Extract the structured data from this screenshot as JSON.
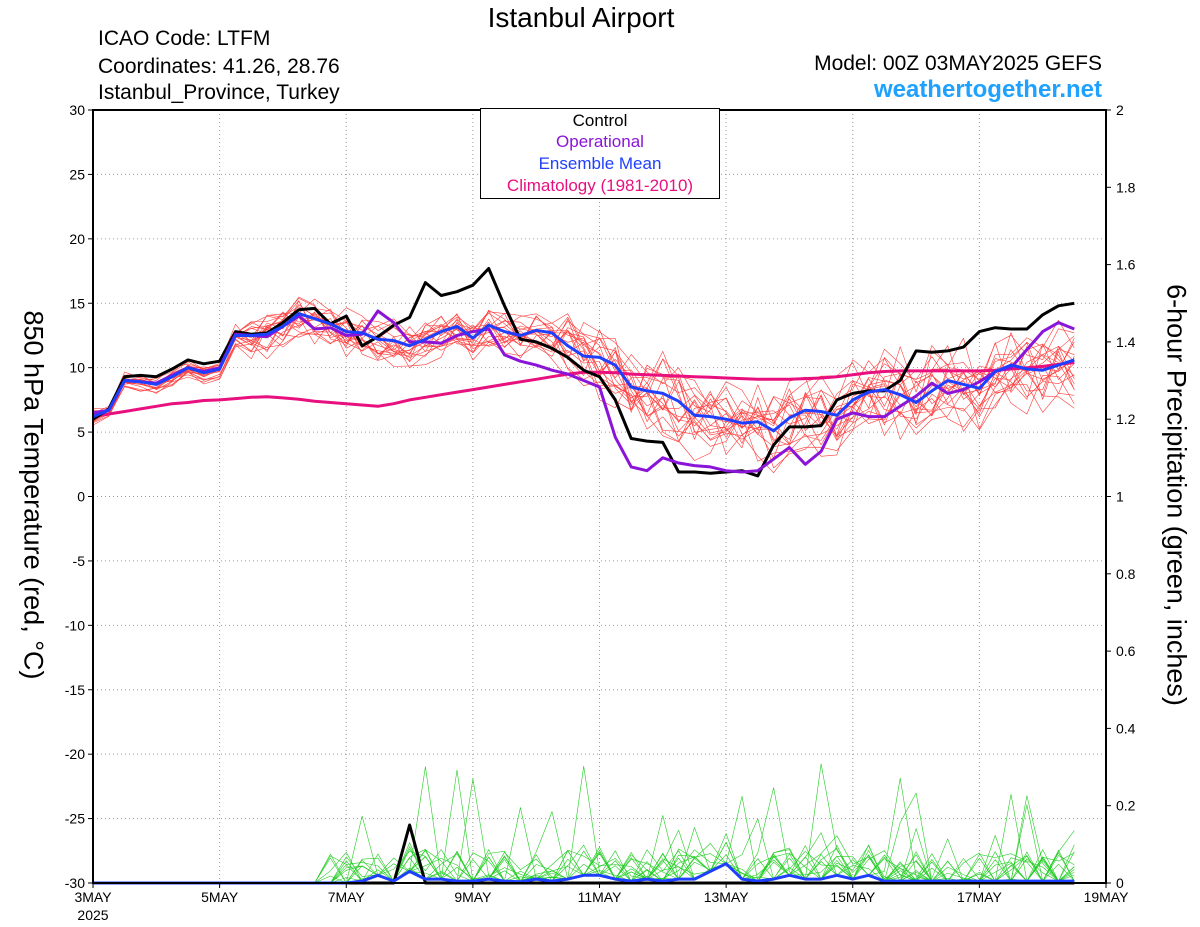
{
  "header": {
    "title": "Istanbul Airport",
    "icao": "ICAO Code: LTFM",
    "coordinates": "Coordinates: 41.26, 28.76",
    "location": "Istanbul_Province, Turkey",
    "model": "Model: 00Z 03MAY2025 GEFS",
    "site": "weathertogether.net"
  },
  "chart_data": {
    "type": "line",
    "x_unit": "6-hour steps from 00Z 03MAY2025",
    "xlim": [
      0,
      64
    ],
    "x_ticks": [
      {
        "x": 0,
        "label": "3MAY",
        "sub": "2025"
      },
      {
        "x": 8,
        "label": "5MAY"
      },
      {
        "x": 16,
        "label": "7MAY"
      },
      {
        "x": 24,
        "label": "9MAY"
      },
      {
        "x": 32,
        "label": "11MAY"
      },
      {
        "x": 40,
        "label": "13MAY"
      },
      {
        "x": 48,
        "label": "15MAY"
      },
      {
        "x": 56,
        "label": "17MAY"
      },
      {
        "x": 64,
        "label": "19MAY"
      }
    ],
    "y_left": {
      "label": "850 hPa Temperature (red, °C)",
      "lim": [
        -30,
        30
      ],
      "ticks": [
        "30",
        "25",
        "20",
        "15",
        "10",
        "5",
        "0",
        "-5",
        "-10",
        "-15",
        "-20",
        "-25",
        "-30"
      ]
    },
    "y_right": {
      "label": "6-hour Precipitation (green, inches)",
      "lim": [
        0,
        2
      ],
      "ticks": [
        "2",
        "1.8",
        "1.6",
        "1.4",
        "1.2",
        "1",
        "0.8",
        "0.6",
        "0.4",
        "0.2",
        "0"
      ]
    },
    "grid": "dotted",
    "legend": [
      "Control",
      "Operational",
      "Ensemble Mean",
      "Climatology (1981-2010)"
    ],
    "legend_colors": [
      "#000000",
      "#8a14d8",
      "#1f3fff",
      "#e8107f"
    ],
    "colors": {
      "member_temp": "#ff3a3a",
      "member_precip": "#22cc22"
    },
    "series": {
      "control_temp": [
        6.0,
        6.8,
        9.3,
        9.4,
        9.3,
        9.9,
        10.6,
        10.3,
        10.5,
        12.8,
        12.6,
        12.7,
        13.5,
        14.5,
        14.6,
        13.4,
        14.0,
        11.7,
        12.4,
        13.3,
        13.9,
        16.6,
        15.6,
        15.9,
        16.4,
        17.7,
        14.8,
        12.2,
        12.0,
        11.5,
        10.8,
        9.8,
        9.3,
        7.5,
        4.5,
        4.3,
        4.2,
        1.9,
        1.9,
        1.8,
        1.9,
        2.0,
        1.6,
        4.0,
        5.4,
        5.4,
        5.5,
        7.5,
        8.0,
        8.2,
        8.2,
        9.0,
        11.3,
        11.2,
        11.3,
        11.6,
        12.8,
        13.1,
        13.0,
        13.0,
        14.1,
        14.8,
        15.0
      ],
      "operational_temp": [
        6.5,
        6.7,
        9.0,
        8.9,
        8.8,
        9.4,
        10.0,
        9.7,
        10.0,
        12.6,
        12.5,
        12.4,
        13.2,
        14.0,
        13.0,
        13.1,
        12.5,
        12.6,
        14.4,
        13.5,
        12.0,
        12.0,
        11.9,
        12.5,
        12.8,
        13.0,
        11.0,
        10.5,
        10.2,
        9.8,
        9.5,
        9.0,
        8.5,
        4.6,
        2.3,
        2.0,
        3.0,
        2.6,
        2.4,
        2.3,
        2.0,
        1.9,
        2.0,
        2.9,
        3.8,
        2.5,
        3.5,
        6.0,
        6.5,
        6.2,
        6.2,
        7.0,
        7.8,
        8.8,
        8.0,
        8.3,
        8.9,
        9.7,
        10.0,
        11.4,
        12.8,
        13.5,
        13.0
      ],
      "mean_temp": [
        6.2,
        6.7,
        9.0,
        8.9,
        8.7,
        9.3,
        10.0,
        9.6,
        9.9,
        12.5,
        12.5,
        12.6,
        13.2,
        14.2,
        13.8,
        13.4,
        12.8,
        12.7,
        12.2,
        12.1,
        11.7,
        12.2,
        12.8,
        13.2,
        12.3,
        13.3,
        12.8,
        12.5,
        12.9,
        12.7,
        11.7,
        10.9,
        10.8,
        10.2,
        8.5,
        8.2,
        8.0,
        7.4,
        6.3,
        6.2,
        6.0,
        5.7,
        5.8,
        5.1,
        6.1,
        6.7,
        6.6,
        6.3,
        7.5,
        8.1,
        8.3,
        7.9,
        7.3,
        8.2,
        9.0,
        8.7,
        8.4,
        9.7,
        10.2,
        9.9,
        9.8,
        10.2,
        10.6
      ],
      "climatology_temp": [
        6.2,
        6.4,
        6.6,
        6.8,
        7.0,
        7.2,
        7.3,
        7.45,
        7.5,
        7.6,
        7.7,
        7.75,
        7.65,
        7.55,
        7.4,
        7.3,
        7.2,
        7.1,
        7.0,
        7.2,
        7.5,
        7.7,
        7.9,
        8.1,
        8.3,
        8.5,
        8.7,
        8.9,
        9.1,
        9.3,
        9.5,
        9.65,
        9.65,
        9.6,
        9.5,
        9.45,
        9.4,
        9.35,
        9.3,
        9.25,
        9.2,
        9.15,
        9.1,
        9.1,
        9.1,
        9.15,
        9.2,
        9.3,
        9.45,
        9.6,
        9.7,
        9.75,
        9.75,
        9.75,
        9.75,
        9.75,
        9.75,
        9.8,
        9.9,
        10.0,
        10.1,
        10.25,
        10.4
      ],
      "control_precip": [
        0,
        0,
        0,
        0,
        0,
        0,
        0,
        0,
        0,
        0,
        0,
        0,
        0,
        0,
        0,
        0,
        0,
        0,
        0,
        0,
        0.15,
        0,
        0,
        0,
        0,
        0,
        0,
        0,
        0,
        0,
        0,
        0,
        0,
        0,
        0,
        0,
        0,
        0,
        0,
        0,
        0,
        0,
        0,
        0,
        0,
        0,
        0,
        0,
        0,
        0,
        0,
        0,
        0,
        0,
        0,
        0,
        0,
        0,
        0,
        0,
        0,
        0,
        0
      ],
      "mean_precip": [
        0,
        0,
        0,
        0,
        0,
        0,
        0,
        0,
        0,
        0,
        0,
        0,
        0,
        0,
        0,
        0,
        0,
        0.005,
        0.02,
        0.005,
        0.03,
        0.01,
        0.01,
        0.005,
        0.005,
        0.01,
        0.005,
        0.003,
        0.01,
        0.005,
        0.01,
        0.02,
        0.02,
        0.01,
        0.005,
        0.01,
        0.005,
        0.01,
        0.01,
        0.03,
        0.05,
        0.01,
        0.005,
        0.01,
        0.02,
        0.01,
        0.01,
        0.02,
        0.01,
        0.02,
        0.005,
        0.005,
        0.005,
        0.005,
        0.005,
        0.005,
        0.005,
        0.005,
        0.005,
        0.005,
        0.005,
        0.005,
        0.005
      ]
    }
  }
}
